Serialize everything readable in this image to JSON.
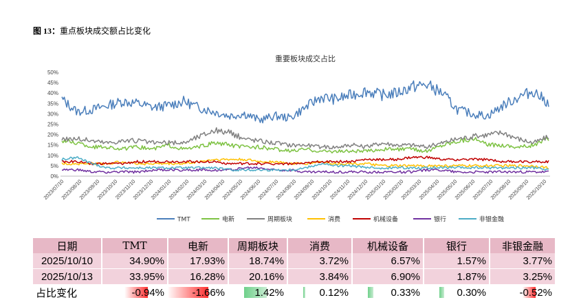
{
  "caption": {
    "label": "图 13：",
    "text": "重点板块成交额占比变化"
  },
  "chart_data": {
    "type": "line",
    "title": "重要板块成交占比",
    "yticks": [
      "50%",
      "45%",
      "40%",
      "35%",
      "30%",
      "25%",
      "20%",
      "15%",
      "10%",
      "5%",
      "0%"
    ],
    "ylim": [
      0,
      50
    ],
    "xticks": [
      "2023/07/10",
      "2023/08/10",
      "2023/09/10",
      "2023/10/10",
      "2023/11/10",
      "2023/12/10",
      "2024/01/10",
      "2024/02/10",
      "2024/03/10",
      "2024/04/10",
      "2024/05/10",
      "2024/06/10",
      "2024/07/10",
      "2024/08/10",
      "2024/09/10",
      "2024/10/10",
      "2024/11/10",
      "2024/12/10",
      "2025/01/10",
      "2025/02/10",
      "2025/03/10",
      "2025/04/10",
      "2025/05/10",
      "2025/06/10",
      "2025/07/10",
      "2025/08/10",
      "2025/09/10",
      "2025/10/10"
    ],
    "series": [
      {
        "name": "TMT",
        "color": "#4a7ebb",
        "values": [
          37,
          31,
          32,
          34,
          36,
          35,
          33,
          34,
          36,
          33,
          31,
          29,
          30,
          27,
          29,
          28,
          33,
          38,
          37,
          39,
          41,
          39,
          40,
          43,
          44,
          40,
          32,
          30,
          29,
          34,
          38,
          41,
          35
        ]
      },
      {
        "name": "电新",
        "color": "#7dc242",
        "values": [
          17,
          16,
          14,
          14,
          13,
          14,
          13,
          15,
          13,
          14,
          16,
          15,
          14,
          14,
          13,
          12,
          13,
          12,
          12,
          12,
          12,
          13,
          13,
          13,
          12,
          15,
          17,
          18,
          15,
          15,
          14,
          15,
          18
        ]
      },
      {
        "name": "周期板块",
        "color": "#808080",
        "values": [
          18,
          18,
          17,
          16,
          17,
          17,
          16,
          16,
          16,
          19,
          22,
          21,
          18,
          17,
          16,
          15,
          15,
          14,
          14,
          15,
          14,
          16,
          15,
          15,
          14,
          16,
          18,
          19,
          20,
          21,
          18,
          16,
          19
        ]
      },
      {
        "name": "消费",
        "color": "#ffc000",
        "values": [
          6,
          6,
          6,
          6,
          7,
          6,
          6,
          6,
          6,
          7,
          8,
          8,
          8,
          7,
          7,
          6,
          6,
          7,
          6,
          6,
          6,
          5,
          5,
          5,
          5,
          5,
          5,
          5,
          5,
          5,
          5,
          5,
          4
        ]
      },
      {
        "name": "机械设备",
        "color": "#c00000",
        "values": [
          7,
          7,
          6,
          6,
          6,
          7,
          7,
          7,
          7,
          7,
          7,
          6,
          6,
          6,
          6,
          6,
          6,
          7,
          7,
          7,
          8,
          8,
          8,
          9,
          9,
          8,
          8,
          8,
          8,
          7,
          7,
          7,
          7
        ]
      },
      {
        "name": "银行",
        "color": "#7030a0",
        "values": [
          3,
          3,
          2,
          2,
          2,
          2,
          3,
          3,
          3,
          3,
          3,
          3,
          4,
          4,
          3,
          3,
          2,
          2,
          2,
          2,
          2,
          2,
          2,
          2,
          3,
          3,
          2,
          2,
          2,
          2,
          2,
          2,
          2
        ]
      },
      {
        "name": "非银金融",
        "color": "#4bacc6",
        "values": [
          8,
          9,
          6,
          4,
          4,
          4,
          4,
          4,
          4,
          4,
          4,
          3,
          3,
          3,
          3,
          3,
          4,
          6,
          5,
          5,
          4,
          4,
          4,
          4,
          4,
          4,
          4,
          4,
          4,
          4,
          4,
          4,
          3
        ]
      }
    ]
  },
  "table": {
    "headers": [
      "日期",
      "TMT",
      "电新",
      "周期板块",
      "消费",
      "机械设备",
      "银行",
      "非银金融"
    ],
    "rows": [
      [
        "2025/10/10",
        "34.90%",
        "17.93%",
        "18.74%",
        "3.72%",
        "6.57%",
        "1.57%",
        "3.77%"
      ],
      [
        "2025/10/13",
        "33.95%",
        "16.28%",
        "20.16%",
        "3.84%",
        "6.90%",
        "1.87%",
        "3.25%"
      ]
    ],
    "change_label": "占比变化",
    "changes": [
      "-0.94%",
      "-1.66%",
      "1.42%",
      "0.12%",
      "0.33%",
      "0.30%",
      "-0.52%"
    ],
    "change_values": [
      -0.94,
      -1.66,
      1.42,
      0.12,
      0.33,
      0.3,
      -0.52
    ]
  }
}
